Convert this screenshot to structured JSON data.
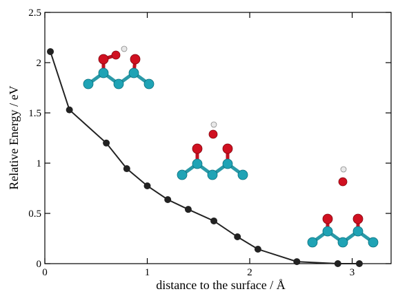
{
  "chart_data": {
    "type": "line",
    "xlabel": "distance to the surface / Å",
    "ylabel": "Relative Energy / eV",
    "x": [
      0.054,
      0.24,
      0.6,
      0.8,
      1.0,
      1.2,
      1.4,
      1.65,
      1.88,
      2.08,
      2.46,
      2.86,
      3.07
    ],
    "series": [
      {
        "color": "#222222",
        "values": [
          2.11,
          1.53,
          1.2,
          0.945,
          0.774,
          0.637,
          0.54,
          0.425,
          0.267,
          0.144,
          0.02,
          0.0,
          0.0
        ]
      }
    ],
    "xlim": [
      0,
      3.38
    ],
    "ylim": [
      0,
      2.5
    ],
    "xticks": [
      0,
      1,
      2,
      3
    ],
    "yticks": [
      0,
      0.5,
      1,
      1.5,
      2,
      2.5
    ]
  }
}
